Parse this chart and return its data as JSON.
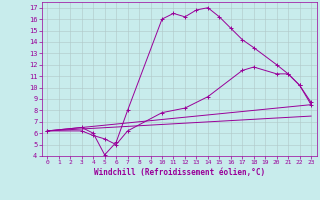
{
  "xlabel": "Windchill (Refroidissement éolien,°C)",
  "bg_color": "#c8ecec",
  "line_color": "#990099",
  "grid_color": "#b0c8c8",
  "xlim": [
    -0.5,
    23.5
  ],
  "ylim": [
    4,
    17.5
  ],
  "xticks": [
    0,
    1,
    2,
    3,
    4,
    5,
    6,
    7,
    8,
    9,
    10,
    11,
    12,
    13,
    14,
    15,
    16,
    17,
    18,
    19,
    20,
    21,
    22,
    23
  ],
  "yticks": [
    4,
    5,
    6,
    7,
    8,
    9,
    10,
    11,
    12,
    13,
    14,
    15,
    16,
    17
  ],
  "line1_x": [
    0,
    3,
    4,
    5,
    6,
    7,
    10,
    11,
    12,
    13,
    14,
    15,
    16,
    17,
    18,
    20,
    21,
    22,
    23
  ],
  "line1_y": [
    6.2,
    6.5,
    6.0,
    4.1,
    5.2,
    8.0,
    16.0,
    16.5,
    16.2,
    16.8,
    17.0,
    16.2,
    15.2,
    14.2,
    13.5,
    12.0,
    11.2,
    10.2,
    8.7
  ],
  "line2_x": [
    0,
    3,
    4,
    5,
    6,
    7,
    10,
    12,
    14,
    17,
    18,
    20,
    21,
    22,
    23
  ],
  "line2_y": [
    6.2,
    6.2,
    5.8,
    5.5,
    5.0,
    6.2,
    7.8,
    8.2,
    9.2,
    11.5,
    11.8,
    11.2,
    11.2,
    10.2,
    8.5
  ],
  "line3_x": [
    0,
    23
  ],
  "line3_y": [
    6.2,
    7.5
  ],
  "line4_x": [
    0,
    23
  ],
  "line4_y": [
    6.2,
    8.5
  ]
}
